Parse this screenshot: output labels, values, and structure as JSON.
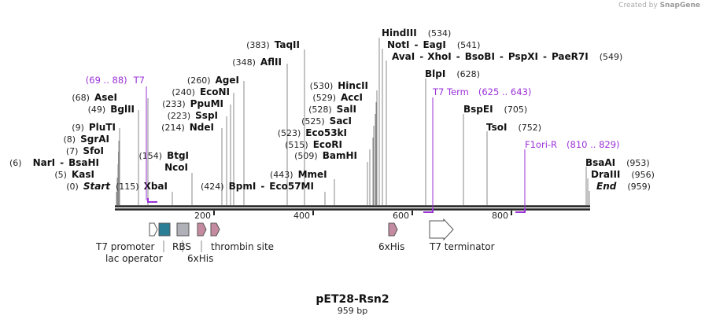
{
  "credit": {
    "prefix": "Created by",
    "brand": "SnapGene"
  },
  "plasmid": {
    "name": "pET28-Rsn2",
    "size_label": "959 bp",
    "length": 959
  },
  "ruler": {
    "ticks": [
      200,
      400,
      600,
      800
    ]
  },
  "colors": {
    "primer": "#9b32d8",
    "backbone": "#222222",
    "feature_teal": "#2a7f96",
    "feature_gray": "#b0b0b8",
    "feature_pink": "#c48aa0"
  },
  "sites_left": [
    {
      "pos": "(0)",
      "name": "Start",
      "italic": true,
      "bp": 0
    },
    {
      "pos": "(5)",
      "name": "KasI",
      "bp": 5
    },
    {
      "pos": "(6)",
      "name": "NarI",
      "name2": "BsaHI",
      "bp": 6
    },
    {
      "pos": "(7)",
      "name": "SfoI",
      "bp": 7
    },
    {
      "pos": "(8)",
      "name": "SgrAI",
      "bp": 8
    },
    {
      "pos": "(9)",
      "name": "PluTI",
      "bp": 9
    },
    {
      "pos": "(49)",
      "name": "BglII",
      "bp": 49
    },
    {
      "pos": "(68)",
      "name": "AseI",
      "bp": 68
    }
  ],
  "sites_mid": [
    {
      "pos": "(115)",
      "name": "XbaI",
      "bp": 115
    },
    {
      "pos": "(154)",
      "name": "BtgI",
      "bp": 154
    },
    {
      "name": "NcoI",
      "bp": 154
    },
    {
      "pos": "(214)",
      "name": "NdeI",
      "bp": 214
    },
    {
      "pos": "(223)",
      "name": "SspI",
      "bp": 223
    },
    {
      "pos": "(233)",
      "name": "PpuMI",
      "bp": 233
    },
    {
      "pos": "(240)",
      "name": "EcoNI",
      "bp": 240
    },
    {
      "pos": "(260)",
      "name": "AgeI",
      "bp": 260
    },
    {
      "pos": "(348)",
      "name": "AflII",
      "bp": 348
    },
    {
      "pos": "(383)",
      "name": "TaqII",
      "bp": 383
    },
    {
      "pos": "(424)",
      "name": "BpmI",
      "name2": "Eco57MI",
      "bp": 424
    },
    {
      "pos": "(443)",
      "name": "MmeI",
      "bp": 443
    },
    {
      "pos": "(509)",
      "name": "BamHI",
      "bp": 509
    },
    {
      "pos": "(515)",
      "name": "EcoRI",
      "bp": 515
    },
    {
      "pos": "(523)",
      "name": "Eco53kI",
      "bp": 523
    },
    {
      "pos": "(525)",
      "name": "SacI",
      "bp": 525
    },
    {
      "pos": "(528)",
      "name": "SalI",
      "bp": 528
    },
    {
      "pos": "(529)",
      "name": "AccI",
      "bp": 529
    },
    {
      "pos": "(530)",
      "name": "HincII",
      "bp": 530
    }
  ],
  "sites_right": [
    {
      "pos": "(534)",
      "name": "HindIII",
      "bp": 534
    },
    {
      "pos": "(541)",
      "name": "NotI",
      "name2": "EagI",
      "bp": 541
    },
    {
      "pos": "(549)",
      "name": "AvaI",
      "name2": "XhoI",
      "name3": "BsoBI",
      "name4": "PspXI",
      "name5": "PaeR7I",
      "bp": 549
    },
    {
      "pos": "(628)",
      "name": "BlpI",
      "bp": 628
    },
    {
      "pos": "(705)",
      "name": "BspEI",
      "bp": 705
    },
    {
      "pos": "(752)",
      "name": "TsoI",
      "bp": 752
    },
    {
      "pos": "(953)",
      "name": "BsaAI",
      "bp": 953
    },
    {
      "pos": "(956)",
      "name": "DraIII",
      "bp": 956
    },
    {
      "pos": "(959)",
      "name": "End",
      "italic": true,
      "bp": 959
    }
  ],
  "primers": [
    {
      "name": "T7",
      "range": "(69 .. 88)",
      "start": 69,
      "end": 88
    },
    {
      "name": "T7 Term",
      "range": "(625 .. 643)",
      "start": 625,
      "end": 643
    },
    {
      "name": "F1ori-R",
      "range": "(810 .. 829)",
      "start": 810,
      "end": 829
    }
  ],
  "features": [
    {
      "name": "T7 promoter",
      "type": "arrow"
    },
    {
      "name": "lac operator",
      "type": "box"
    },
    {
      "name": "RBS",
      "type": "box"
    },
    {
      "name": "6xHis",
      "type": "arrow"
    },
    {
      "name": "thrombin site",
      "type": "arrow"
    },
    {
      "name": "6xHis",
      "type": "arrow"
    },
    {
      "name": "T7 terminator",
      "type": "arrow"
    }
  ]
}
